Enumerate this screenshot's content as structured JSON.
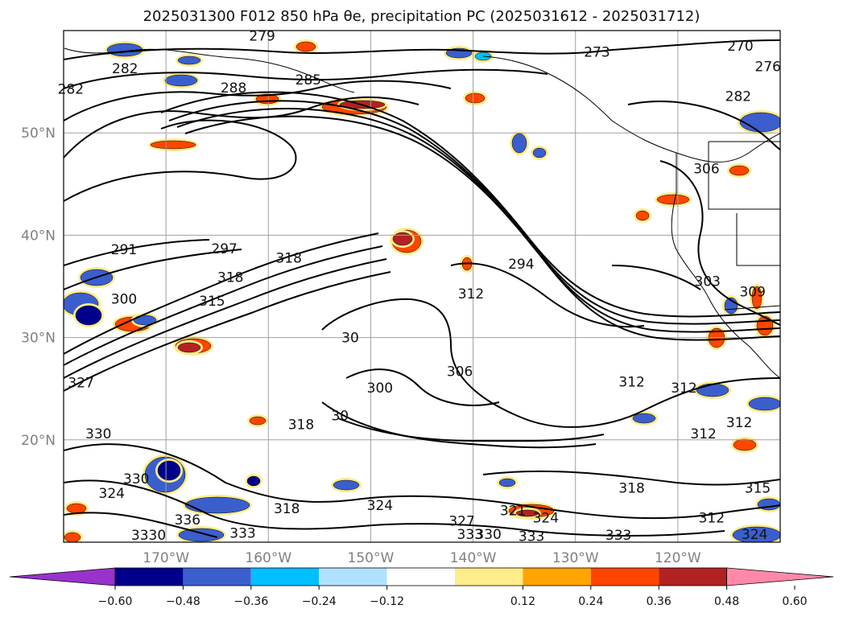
{
  "title": "2025031300 F012 850 hPa θe, precipitation PC (2025031612 - 2025031712)",
  "chart_data": {
    "type": "contour map",
    "projection": "lat-lon",
    "lon_range": [
      -180,
      -110
    ],
    "lat_range": [
      10,
      60
    ],
    "lon_ticks": [
      {
        "value": -170,
        "label": "170°W"
      },
      {
        "value": -160,
        "label": "160°W"
      },
      {
        "value": -150,
        "label": "150°W"
      },
      {
        "value": -140,
        "label": "140°W"
      },
      {
        "value": -130,
        "label": "130°W"
      },
      {
        "value": -120,
        "label": "120°W"
      }
    ],
    "lat_ticks": [
      {
        "value": 20,
        "label": "20°N"
      },
      {
        "value": 30,
        "label": "30°N"
      },
      {
        "value": 40,
        "label": "40°N"
      },
      {
        "value": 50,
        "label": "50°N"
      }
    ],
    "grid": true,
    "contour_field": "850 hPa θe",
    "contour_labels": [
      {
        "text": "282",
        "lon": -174,
        "lat": 56.3
      },
      {
        "text": "282",
        "lon": -179.3,
        "lat": 54.3
      },
      {
        "text": "285",
        "lon": -156.1,
        "lat": 55.2
      },
      {
        "text": "288",
        "lon": -163.4,
        "lat": 54.4
      },
      {
        "text": "279",
        "lon": -160.6,
        "lat": 59.5
      },
      {
        "text": "273",
        "lon": -127.9,
        "lat": 57.9
      },
      {
        "text": "270",
        "lon": -113.9,
        "lat": 58.5
      },
      {
        "text": "276",
        "lon": -111.2,
        "lat": 56.5
      },
      {
        "text": "282",
        "lon": -114.1,
        "lat": 53.6
      },
      {
        "text": "291",
        "lon": -174.1,
        "lat": 38.6
      },
      {
        "text": "297",
        "lon": -164.3,
        "lat": 38.7
      },
      {
        "text": "318",
        "lon": -158,
        "lat": 37.8
      },
      {
        "text": "318",
        "lon": -163.7,
        "lat": 35.9
      },
      {
        "text": "315",
        "lon": -165.5,
        "lat": 33.6
      },
      {
        "text": "300",
        "lon": -174.1,
        "lat": 33.8
      },
      {
        "text": "294",
        "lon": -135.3,
        "lat": 37.2
      },
      {
        "text": "312",
        "lon": -140.2,
        "lat": 34.3
      },
      {
        "text": "303",
        "lon": -117.1,
        "lat": 35.5
      },
      {
        "text": "309",
        "lon": -112.7,
        "lat": 34.5
      },
      {
        "text": "306",
        "lon": -117.2,
        "lat": 46.5
      },
      {
        "text": "30",
        "lon": -152,
        "lat": 30
      },
      {
        "text": "306",
        "lon": -141.3,
        "lat": 26.7
      },
      {
        "text": "300",
        "lon": -149.1,
        "lat": 25.1
      },
      {
        "text": "312",
        "lon": -124.5,
        "lat": 25.7
      },
      {
        "text": "312",
        "lon": -119.4,
        "lat": 25.1
      },
      {
        "text": "312",
        "lon": -114,
        "lat": 21.7
      },
      {
        "text": "312",
        "lon": -117.5,
        "lat": 20.6
      },
      {
        "text": "318",
        "lon": -156.8,
        "lat": 21.5
      },
      {
        "text": "30",
        "lon": -153,
        "lat": 22.4
      },
      {
        "text": "327",
        "lon": -178.3,
        "lat": 25.6
      },
      {
        "text": "330",
        "lon": -176.6,
        "lat": 20.6
      },
      {
        "text": "330",
        "lon": -172.9,
        "lat": 16.2
      },
      {
        "text": "324",
        "lon": -175.3,
        "lat": 14.8
      },
      {
        "text": "318",
        "lon": -158.2,
        "lat": 13.3
      },
      {
        "text": "336",
        "lon": -167.9,
        "lat": 12.2
      },
      {
        "text": "333",
        "lon": -162.5,
        "lat": 10.9
      },
      {
        "text": "3330",
        "lon": -171.7,
        "lat": 10.7
      },
      {
        "text": "324",
        "lon": -149.1,
        "lat": 13.6
      },
      {
        "text": "327",
        "lon": -141.1,
        "lat": 12.1
      },
      {
        "text": "333",
        "lon": -140.3,
        "lat": 10.8
      },
      {
        "text": "330",
        "lon": -138.5,
        "lat": 10.8
      },
      {
        "text": "321",
        "lon": -136.1,
        "lat": 13.1
      },
      {
        "text": "324",
        "lon": -132.9,
        "lat": 12.4
      },
      {
        "text": "333",
        "lon": -134.3,
        "lat": 10.6
      },
      {
        "text": "333",
        "lon": -125.8,
        "lat": 10.7
      },
      {
        "text": "318",
        "lon": -124.5,
        "lat": 15.3
      },
      {
        "text": "315",
        "lon": -112.2,
        "lat": 15.3
      },
      {
        "text": "312",
        "lon": -116.7,
        "lat": 12.4
      },
      {
        "text": "324",
        "lon": -112.5,
        "lat": 10.8
      }
    ],
    "colorbar": {
      "ticks": [
        "−0.60",
        "−0.48",
        "−0.36",
        "−0.24",
        "−0.12",
        "0.12",
        "0.24",
        "0.36",
        "0.48",
        "0.60"
      ],
      "colors": [
        "#9932cc",
        "#00008b",
        "#3a5fcd",
        "#00bfff",
        "#b0e2ff",
        "#ffffff",
        "#ffec8b",
        "#ffa500",
        "#ff4500",
        "#b22222",
        "#ff88aa"
      ],
      "extend": "both"
    }
  }
}
